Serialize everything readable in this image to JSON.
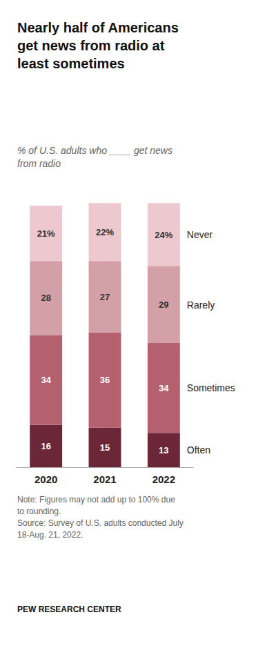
{
  "chart_data": {
    "type": "bar",
    "title": "Nearly half of Americans\nget news from radio at\nleast sometimes",
    "subtitle": "% of U.S. adults who ____ get news\nfrom radio",
    "note": "Note: Figures may not add up to 100% due\nto rounding.\nSource: Survey of U.S. adults conducted July\n18-Aug. 21, 2022.",
    "source": "PEW RESEARCH CENTER",
    "categories": [
      "2020",
      "2021",
      "2022"
    ],
    "series": [
      {
        "name": "Often",
        "color": "#6b2737",
        "values": [
          16,
          15,
          13
        ],
        "value_labels": [
          "16",
          "15",
          "13"
        ]
      },
      {
        "name": "Sometimes",
        "color": "#b5606e",
        "values": [
          34,
          36,
          34
        ],
        "value_labels": [
          "34",
          "36",
          "34"
        ]
      },
      {
        "name": "Rarely",
        "color": "#d4a0a8",
        "values": [
          28,
          27,
          29
        ],
        "value_labels": [
          "28",
          "27",
          "29"
        ]
      },
      {
        "name": "Never",
        "color": "#eec8cf",
        "values": [
          21,
          22,
          24
        ],
        "value_labels": [
          "21%",
          "22%",
          "24%"
        ]
      }
    ],
    "ylim": [
      0,
      105
    ],
    "stacked": true,
    "data_labels": true,
    "tick_labels": "x",
    "grid": false
  }
}
